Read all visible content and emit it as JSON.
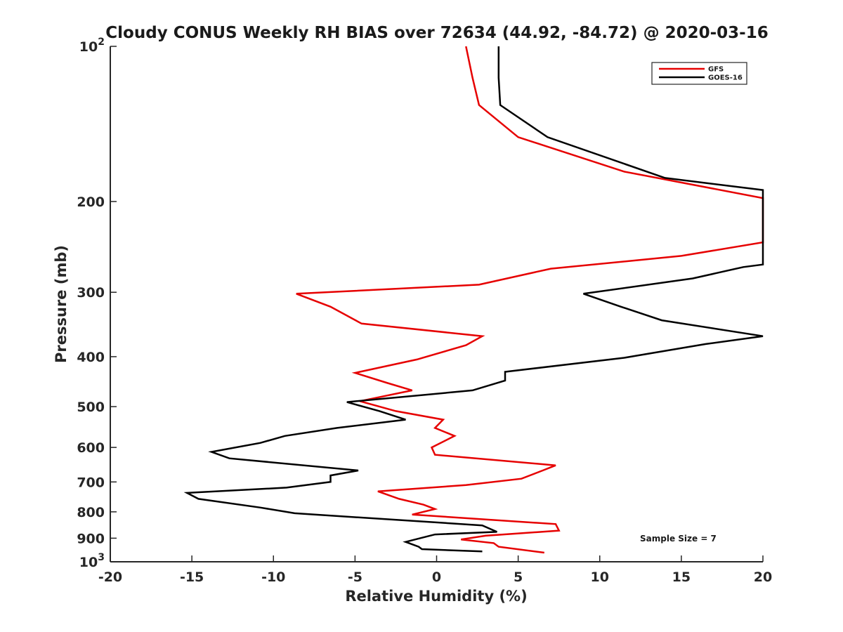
{
  "chart_data": {
    "type": "line",
    "title": "Cloudy CONUS Weekly RH BIAS over 72634 (44.92, -84.72) @ 2020-03-16",
    "xlabel": "Relative Humidity (%)",
    "ylabel": "Pressure (mb)",
    "xlim": [
      -20,
      20
    ],
    "ylim": [
      100,
      1000
    ],
    "y_scale": "log",
    "y_reversed": true,
    "x_ticks": [
      "-20",
      "-15",
      "-10",
      "-5",
      "0",
      "5",
      "10",
      "15",
      "20"
    ],
    "x_tick_values": [
      -20,
      -15,
      -10,
      -5,
      0,
      5,
      10,
      15,
      20
    ],
    "y_ticks": [
      {
        "value": 100,
        "base": "10",
        "exp": "2"
      },
      {
        "value": 200,
        "label": "200"
      },
      {
        "value": 300,
        "label": "300"
      },
      {
        "value": 400,
        "label": "400"
      },
      {
        "value": 500,
        "label": "500"
      },
      {
        "value": 600,
        "label": "600"
      },
      {
        "value": 700,
        "label": "700"
      },
      {
        "value": 800,
        "label": "800"
      },
      {
        "value": 900,
        "label": "900"
      },
      {
        "value": 1000,
        "base": "10",
        "exp": "3"
      }
    ],
    "grid": false,
    "legend_position": "top-right",
    "annotation": "Sample Size = 7",
    "series": [
      {
        "name": "GFS",
        "color": "#e60000",
        "points": [
          [
            1.8,
            100
          ],
          [
            2.2,
            115
          ],
          [
            2.6,
            130
          ],
          [
            5.0,
            150
          ],
          [
            11.5,
            175
          ],
          [
            20,
            197
          ],
          [
            20,
            240
          ],
          [
            15,
            255
          ],
          [
            7,
            270
          ],
          [
            2.6,
            290
          ],
          [
            -8.6,
            302
          ],
          [
            -6.5,
            320
          ],
          [
            -4.6,
            345
          ],
          [
            2.8,
            365
          ],
          [
            1.8,
            380
          ],
          [
            -1.2,
            405
          ],
          [
            -5.0,
            430
          ],
          [
            -3.0,
            450
          ],
          [
            -1.5,
            465
          ],
          [
            -4.7,
            488
          ],
          [
            -4.0,
            495
          ],
          [
            -2.5,
            510
          ],
          [
            0.4,
            530
          ],
          [
            -0.1,
            550
          ],
          [
            1.1,
            570
          ],
          [
            -0.3,
            600
          ],
          [
            -0.1,
            620
          ],
          [
            7.3,
            650
          ],
          [
            6.5,
            665
          ],
          [
            5.2,
            690
          ],
          [
            1.8,
            710
          ],
          [
            -3.6,
            730
          ],
          [
            -2.3,
            755
          ],
          [
            -0.8,
            775
          ],
          [
            -0.1,
            790
          ],
          [
            -1.5,
            810
          ],
          [
            7.3,
            845
          ],
          [
            7.5,
            870
          ],
          [
            3.0,
            890
          ],
          [
            1.5,
            905
          ],
          [
            3.5,
            920
          ],
          [
            3.8,
            935
          ],
          [
            6.6,
            960
          ]
        ]
      },
      {
        "name": "GOES-16",
        "color": "#000000",
        "points": [
          [
            3.8,
            100
          ],
          [
            3.8,
            115
          ],
          [
            3.9,
            130
          ],
          [
            6.8,
            150
          ],
          [
            14.0,
            180
          ],
          [
            20,
            190
          ],
          [
            20,
            265
          ],
          [
            18.8,
            268
          ],
          [
            15.7,
            282
          ],
          [
            9.0,
            302
          ],
          [
            11.3,
            320
          ],
          [
            13.8,
            340
          ],
          [
            20,
            365
          ],
          [
            16.5,
            378
          ],
          [
            11.5,
            402
          ],
          [
            4.2,
            428
          ],
          [
            4.2,
            445
          ],
          [
            2.2,
            465
          ],
          [
            -5.5,
            490
          ],
          [
            -3.5,
            510
          ],
          [
            -1.9,
            530
          ],
          [
            -6.1,
            550
          ],
          [
            -9.3,
            570
          ],
          [
            -10.8,
            588
          ],
          [
            -13.8,
            612
          ],
          [
            -12.7,
            630
          ],
          [
            -4.8,
            665
          ],
          [
            -6.5,
            680
          ],
          [
            -6.5,
            690
          ],
          [
            -6.5,
            700
          ],
          [
            -9.2,
            718
          ],
          [
            -15.3,
            735
          ],
          [
            -14.6,
            755
          ],
          [
            -10.8,
            785
          ],
          [
            -8.7,
            805
          ],
          [
            2.8,
            850
          ],
          [
            3.7,
            875
          ],
          [
            -0.1,
            885
          ],
          [
            -1.9,
            915
          ],
          [
            -1.1,
            935
          ],
          [
            -0.9,
            945
          ],
          [
            2.8,
            955
          ]
        ]
      }
    ]
  }
}
